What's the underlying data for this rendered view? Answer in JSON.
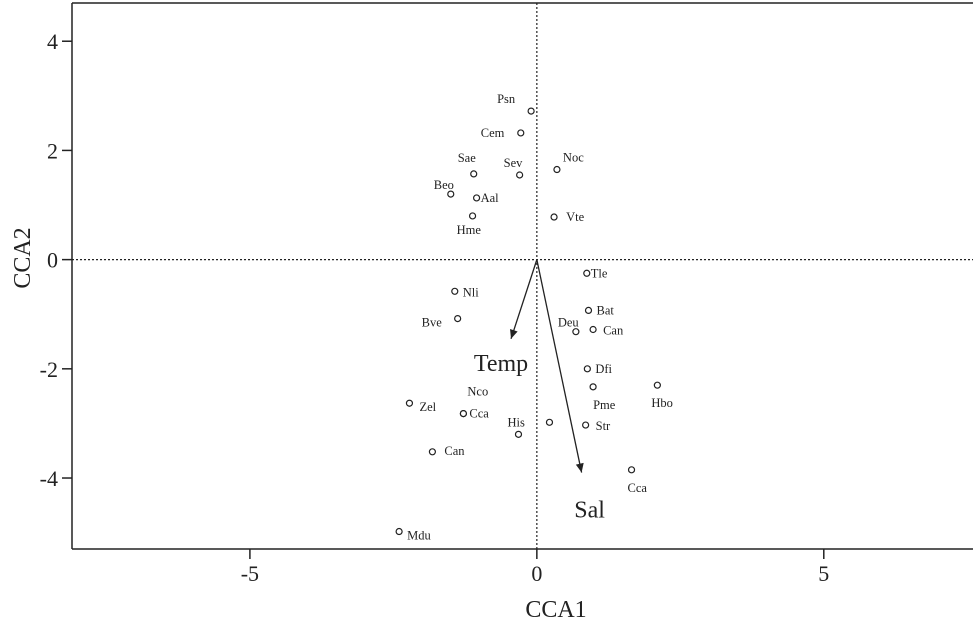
{
  "chart_data": {
    "type": "scatter",
    "title": "",
    "xlabel": "CCA1",
    "ylabel": "CCA2",
    "xlim": [
      -8.1,
      7.6
    ],
    "ylim": [
      -5.3,
      4.7
    ],
    "x_ticks": [
      -5,
      0,
      5
    ],
    "x_tick_labels": [
      "-5",
      "0",
      "5"
    ],
    "y_ticks": [
      4,
      2,
      0,
      -2,
      -4
    ],
    "y_tick_labels": [
      "4",
      "2",
      "0",
      "-2",
      "-4"
    ],
    "grid": false,
    "reference_lines": {
      "x": 0,
      "y": 0,
      "style": "dotted"
    },
    "marker": "open-circle",
    "series": [
      {
        "points": [
          {
            "label": "Psn",
            "x": -0.1,
            "y": 2.72
          },
          {
            "label": "Cem",
            "x": -0.28,
            "y": 2.32
          },
          {
            "label": "Noc",
            "x": 0.35,
            "y": 1.65
          },
          {
            "label": "Sae",
            "x": -1.1,
            "y": 1.57
          },
          {
            "label": "Sev",
            "x": -0.3,
            "y": 1.55
          },
          {
            "label": "Beo",
            "x": -1.5,
            "y": 1.2
          },
          {
            "label": "Aal",
            "x": -1.05,
            "y": 1.13
          },
          {
            "label": "Hme",
            "x": -1.12,
            "y": 0.8
          },
          {
            "label": "Vte",
            "x": 0.3,
            "y": 0.78
          },
          {
            "label": "Tle",
            "x": 0.87,
            "y": -0.25
          },
          {
            "label": "Nli",
            "x": -1.43,
            "y": -0.58
          },
          {
            "label": "Bat",
            "x": 0.9,
            "y": -0.93
          },
          {
            "label": "Bve",
            "x": -1.38,
            "y": -1.08
          },
          {
            "label": "Deu",
            "x": 0.68,
            "y": -1.32
          },
          {
            "label": "Can",
            "x": 0.98,
            "y": -1.28
          },
          {
            "label": "Dfi",
            "x": 0.88,
            "y": -2.0
          },
          {
            "label": "Hbo",
            "x": 2.1,
            "y": -2.3
          },
          {
            "label": "Pme",
            "x": 0.98,
            "y": -2.33
          },
          {
            "label": "Zel",
            "x": -2.22,
            "y": -2.63
          },
          {
            "label": "Nco",
            "x": -1.28,
            "y": -2.82
          },
          {
            "label": "Cca",
            "x": -1.28,
            "y": -2.82
          },
          {
            "label": "His",
            "x": 0.22,
            "y": -2.98
          },
          {
            "label": "Str",
            "x": 0.85,
            "y": -3.03
          },
          {
            "label": "",
            "x": -0.32,
            "y": -3.2
          },
          {
            "label": "Can",
            "x": -1.82,
            "y": -3.52
          },
          {
            "label": "Cca",
            "x": 1.65,
            "y": -3.85
          },
          {
            "label": "Mdu",
            "x": -2.4,
            "y": -4.98
          }
        ]
      }
    ],
    "vectors": [
      {
        "label": "Temp",
        "x": -0.45,
        "y": -1.45
      },
      {
        "label": "Sal",
        "x": 0.78,
        "y": -3.9
      }
    ]
  }
}
